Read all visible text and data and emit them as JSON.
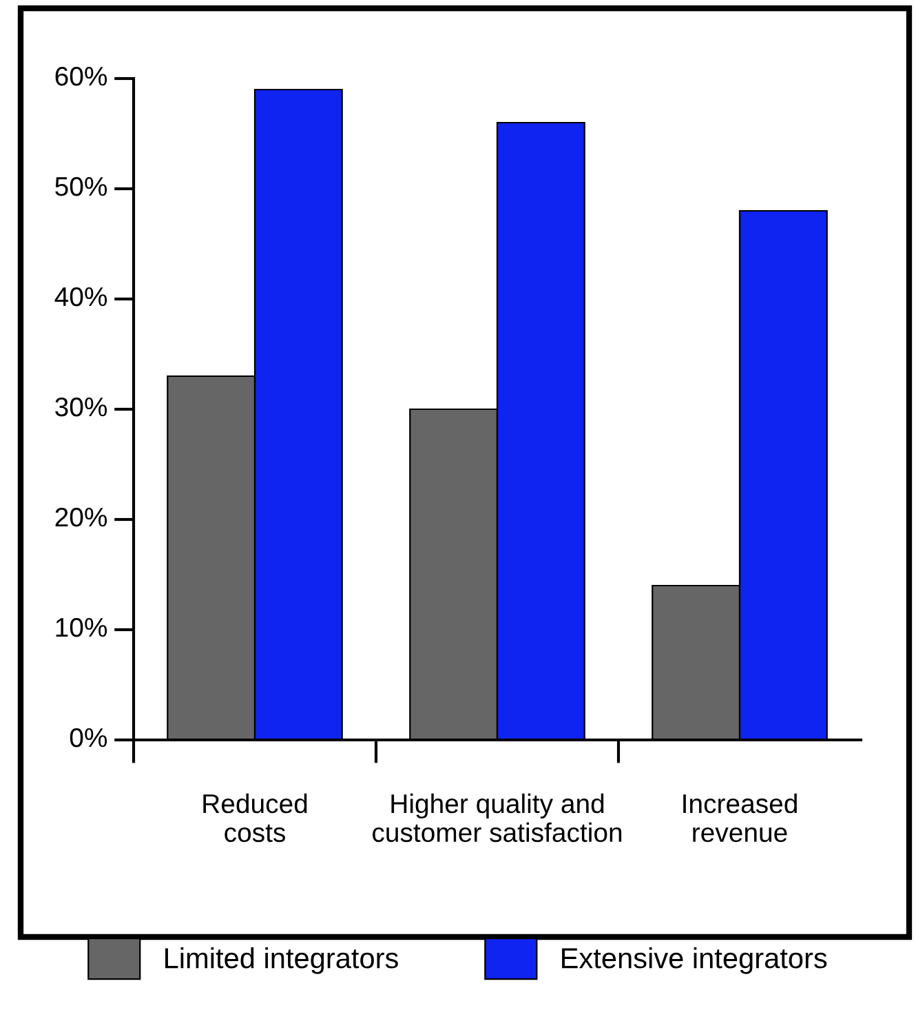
{
  "chart_data": {
    "type": "bar",
    "categories": [
      "Reduced\ncosts",
      "Higher quality and\ncustomer satisfaction",
      "Increased\nrevenue"
    ],
    "series": [
      {
        "name": "Limited integrators",
        "color": "#666666",
        "values": [
          33,
          30,
          14
        ]
      },
      {
        "name": "Extensive integrators",
        "color": "#0f24f0",
        "values": [
          59,
          56,
          48
        ]
      }
    ],
    "ylim": [
      0,
      60
    ],
    "yticks": [
      {
        "value": 0,
        "label": "0%"
      },
      {
        "value": 10,
        "label": "10%"
      },
      {
        "value": 20,
        "label": "20%"
      },
      {
        "value": 30,
        "label": "30%"
      },
      {
        "value": 40,
        "label": "40%"
      },
      {
        "value": 50,
        "label": "50%"
      },
      {
        "value": 60,
        "label": "60%"
      }
    ],
    "grid": false,
    "legend": "bottom"
  }
}
